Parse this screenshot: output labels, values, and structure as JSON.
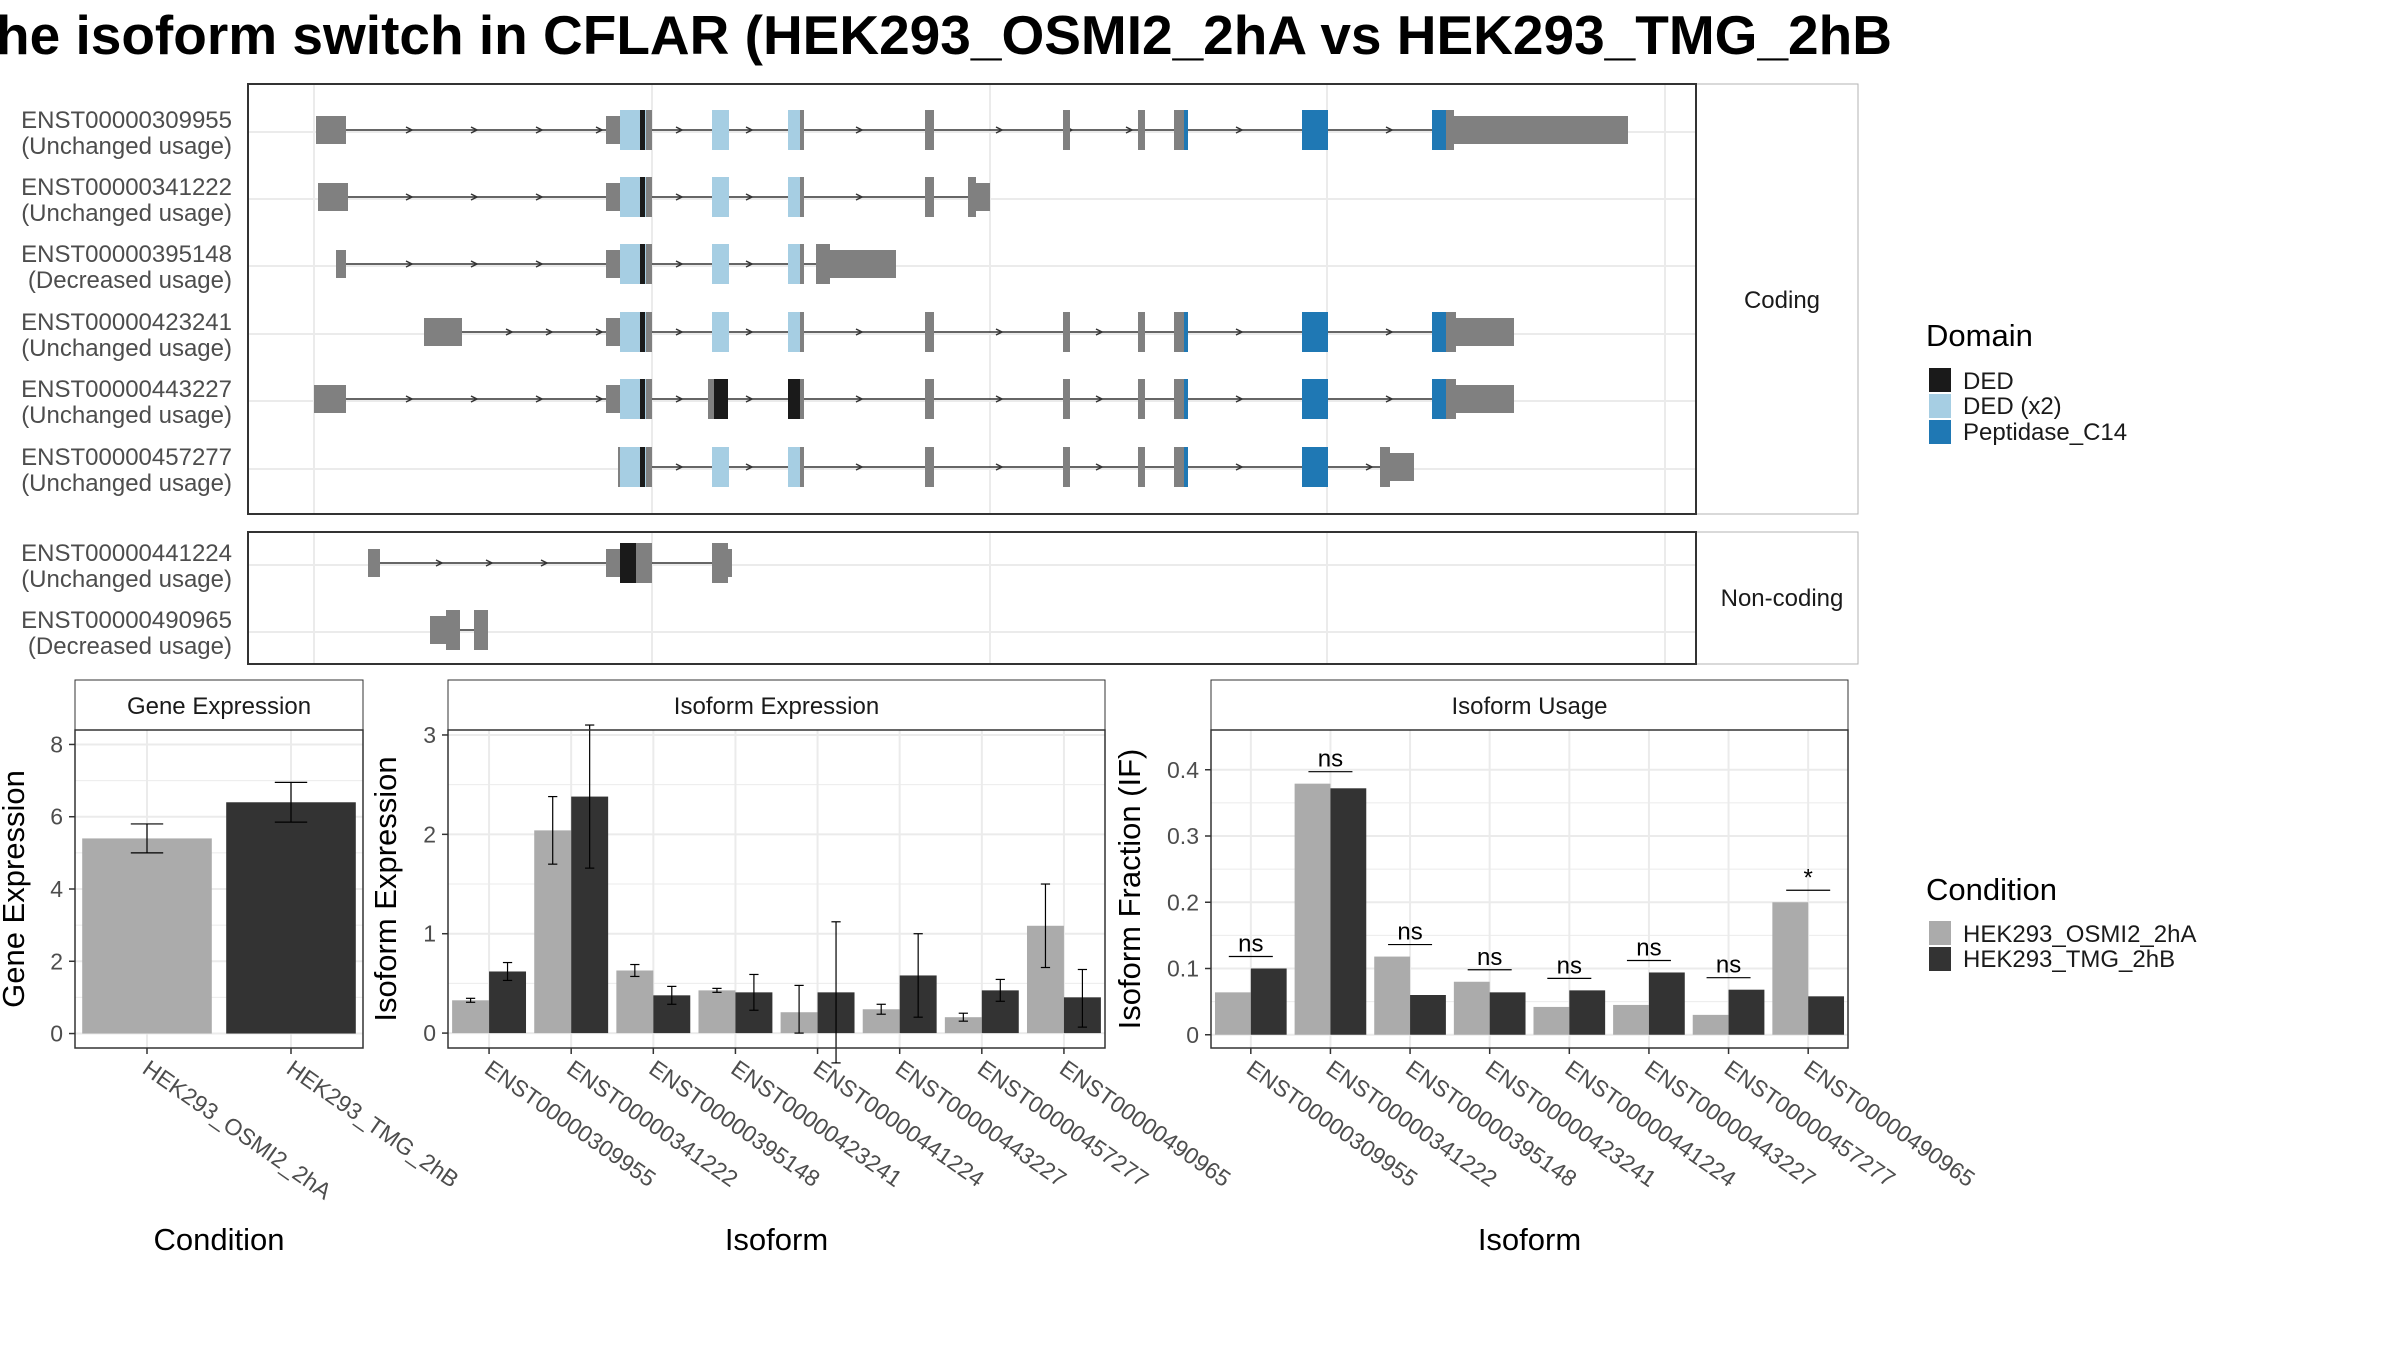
{
  "title": "he isoform switch in CFLAR (HEK293_OSMI2_2hA vs HEK293_TMG_2hB",
  "structure_panels": {
    "coding_label": "Coding",
    "noncoding_label": "Non-coding",
    "coding_tracks": [
      {
        "id": "ENST00000309955",
        "usage": "(Unchanged usage)"
      },
      {
        "id": "ENST00000341222",
        "usage": "(Unchanged usage)"
      },
      {
        "id": "ENST00000395148",
        "usage": "(Decreased usage)"
      },
      {
        "id": "ENST00000423241",
        "usage": "(Unchanged usage)"
      },
      {
        "id": "ENST00000443227",
        "usage": "(Unchanged usage)"
      },
      {
        "id": "ENST00000457277",
        "usage": "(Unchanged usage)"
      }
    ],
    "noncoding_tracks": [
      {
        "id": "ENST00000441224",
        "usage": "(Unchanged usage)"
      },
      {
        "id": "ENST00000490965",
        "usage": "(Decreased usage)"
      }
    ]
  },
  "domain_legend": {
    "title": "Domain",
    "items": [
      {
        "label": "DED",
        "color": "#1a1a1a"
      },
      {
        "label": "DED (x2)",
        "color": "#a6cee3"
      },
      {
        "label": "Peptidase_C14",
        "color": "#1f78b4"
      }
    ]
  },
  "condition_legend": {
    "title": "Condition",
    "items": [
      {
        "label": "HEK293_OSMI2_2hA",
        "color": "#ababab"
      },
      {
        "label": "HEK293_TMG_2hB",
        "color": "#333333"
      }
    ]
  },
  "colors": {
    "exon": "#808080",
    "intron": "#333333",
    "condition_a": "#ababab",
    "condition_b": "#333333",
    "grid": "#ebebeb",
    "strip_border": "#333333"
  },
  "chart_data": [
    {
      "type": "bar",
      "title": "Gene Expression",
      "xlabel": "Condition",
      "ylabel": "Gene Expression",
      "ylim": [
        -0.4,
        8.4
      ],
      "yticks": [
        0,
        2,
        4,
        6,
        8
      ],
      "categories": [
        "HEK293_OSMI2_2hA",
        "HEK293_TMG_2hB"
      ],
      "values": [
        5.4,
        6.4
      ],
      "errors": [
        [
          5.0,
          5.8
        ],
        [
          5.85,
          6.95
        ]
      ]
    },
    {
      "type": "bar",
      "title": "Isoform Expression",
      "xlabel": "Isoform",
      "ylabel": "Isoform Expression",
      "ylim": [
        -0.15,
        3.05
      ],
      "yticks": [
        0,
        1,
        2,
        3
      ],
      "categories": [
        "ENST00000309955",
        "ENST00000341222",
        "ENST00000395148",
        "ENST00000423241",
        "ENST00000441224",
        "ENST00000443227",
        "ENST00000457277",
        "ENST00000490965"
      ],
      "series": [
        {
          "name": "HEK293_OSMI2_2hA",
          "values": [
            0.33,
            2.04,
            0.63,
            0.43,
            0.21,
            0.24,
            0.16,
            1.08
          ],
          "errors": [
            [
              0.31,
              0.35
            ],
            [
              1.7,
              2.38
            ],
            [
              0.57,
              0.69
            ],
            [
              0.41,
              0.45
            ],
            [
              0.0,
              0.48
            ],
            [
              0.19,
              0.29
            ],
            [
              0.12,
              0.2
            ],
            [
              0.66,
              1.5
            ]
          ]
        },
        {
          "name": "HEK293_TMG_2hB",
          "values": [
            0.62,
            2.38,
            0.38,
            0.41,
            0.41,
            0.58,
            0.43,
            0.36
          ],
          "errors": [
            [
              0.53,
              0.71
            ],
            [
              1.66,
              3.1
            ],
            [
              0.29,
              0.47
            ],
            [
              0.23,
              0.59
            ],
            [
              -0.3,
              1.12
            ],
            [
              0.16,
              1.0
            ],
            [
              0.32,
              0.54
            ],
            [
              0.06,
              0.64
            ]
          ]
        }
      ]
    },
    {
      "type": "bar",
      "title": "Isoform Usage",
      "xlabel": "Isoform",
      "ylabel": "Isoform Fraction (IF)",
      "ylim": [
        -0.02,
        0.46
      ],
      "yticks": [
        0.0,
        0.1,
        0.2,
        0.3,
        0.4
      ],
      "categories": [
        "ENST00000309955",
        "ENST00000341222",
        "ENST00000395148",
        "ENST00000423241",
        "ENST00000441224",
        "ENST00000443227",
        "ENST00000457277",
        "ENST00000490965"
      ],
      "series": [
        {
          "name": "HEK293_OSMI2_2hA",
          "values": [
            0.064,
            0.379,
            0.118,
            0.08,
            0.042,
            0.045,
            0.03,
            0.2
          ]
        },
        {
          "name": "HEK293_TMG_2hB",
          "values": [
            0.1,
            0.372,
            0.06,
            0.064,
            0.067,
            0.094,
            0.068,
            0.058
          ]
        }
      ],
      "significance": [
        "ns",
        "ns",
        "ns",
        "ns",
        "ns",
        "ns",
        "ns",
        "*"
      ]
    }
  ]
}
